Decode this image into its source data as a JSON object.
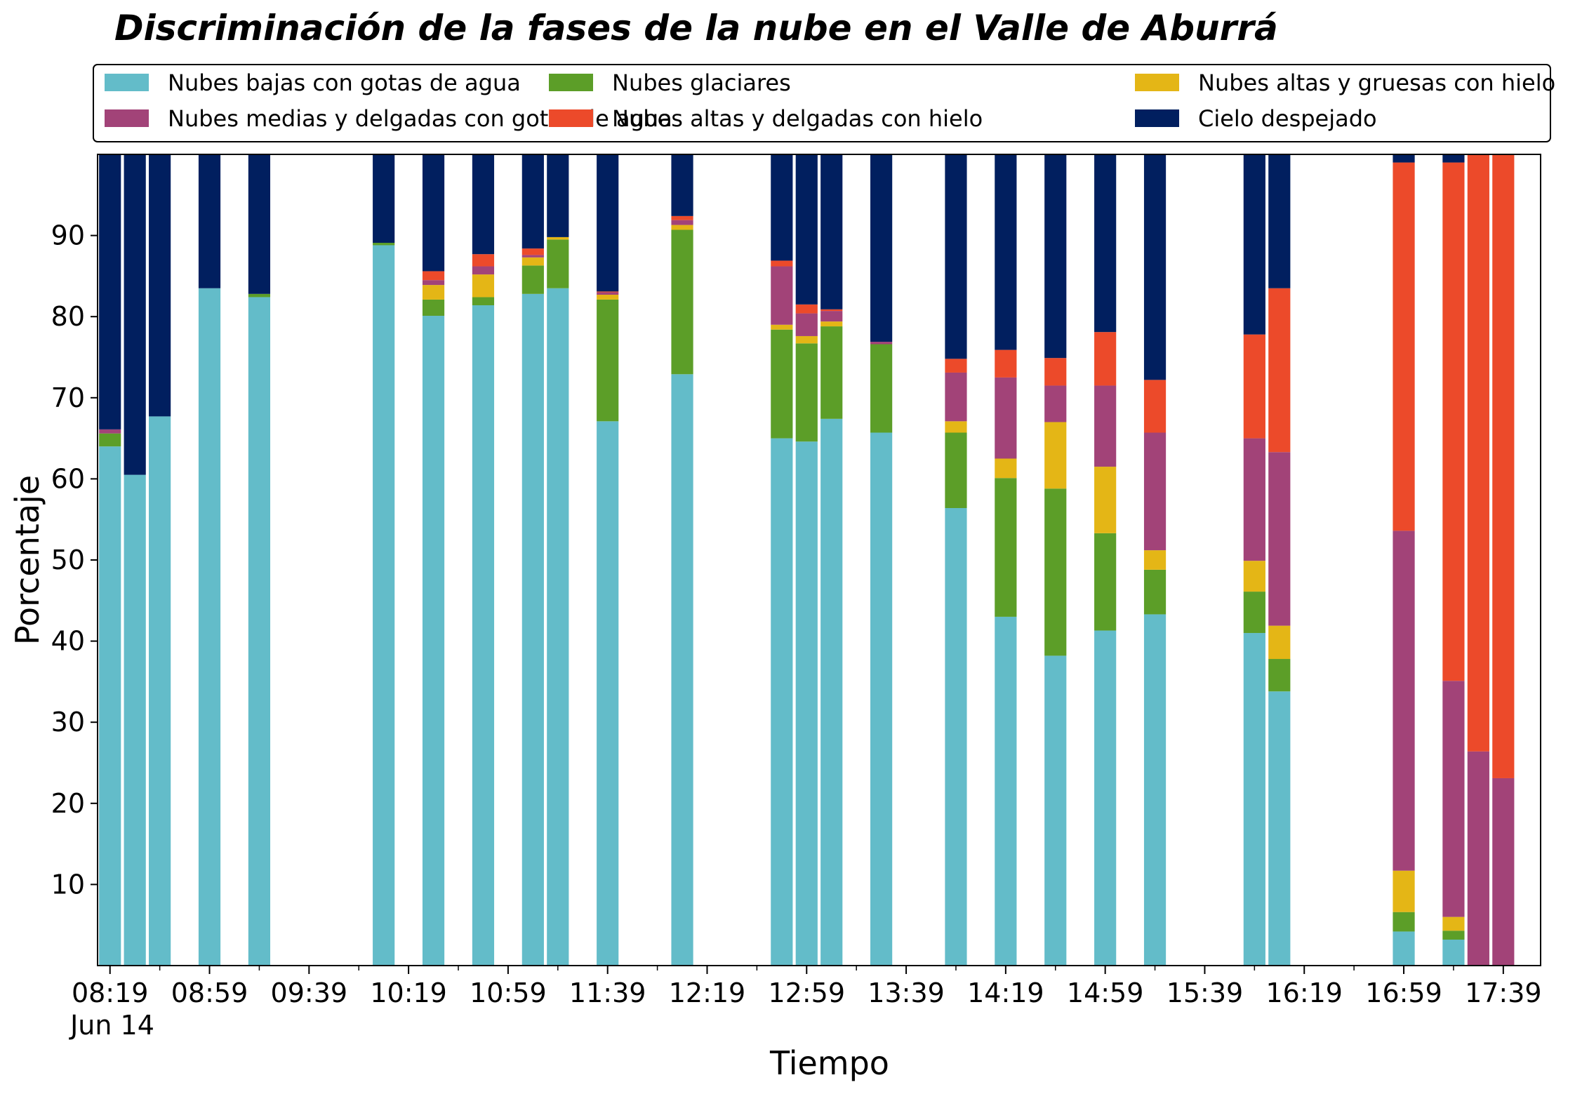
{
  "chart_data": {
    "type": "bar",
    "stacked": true,
    "title": "Discriminación de la fases de la nube en el Valle de Aburrá",
    "xlabel": "Tiempo",
    "ylabel": "Porcentaje",
    "ylim": [
      0,
      100
    ],
    "yticks": [
      10,
      20,
      30,
      40,
      50,
      60,
      70,
      80,
      90
    ],
    "xlim": [
      "08:14",
      "17:54"
    ],
    "xtick_labels": [
      "08:19",
      "08:59",
      "09:39",
      "10:19",
      "10:59",
      "11:39",
      "12:19",
      "12:59",
      "13:39",
      "14:19",
      "14:59",
      "15:39",
      "16:19",
      "16:59",
      "17:39"
    ],
    "x_date_label": "Jun 14",
    "grid": false,
    "legend": {
      "placement": "top",
      "columns": 3
    },
    "series": [
      {
        "name": "Nubes bajas con gotas de agua",
        "color": "#63BCC9"
      },
      {
        "name": "Nubes glaciares",
        "color": "#5C9E28"
      },
      {
        "name": "Nubes altas y gruesas con hielo",
        "color": "#E4B616"
      },
      {
        "name": "Nubes medias y delgadas con gotas de agua",
        "color": "#A24378"
      },
      {
        "name": "Nubes altas y delgadas con hielo",
        "color": "#EC4A2A"
      },
      {
        "name": "Cielo despejado",
        "color": "#011F5F"
      }
    ],
    "bars": [
      {
        "time": "08:19",
        "values": [
          64.0,
          1.6,
          0,
          0.5,
          0,
          33.9
        ]
      },
      {
        "time": "08:29",
        "values": [
          60.5,
          0,
          0,
          0,
          0,
          39.5
        ]
      },
      {
        "time": "08:39",
        "values": [
          67.7,
          0,
          0,
          0,
          0,
          32.3
        ]
      },
      {
        "time": "08:59",
        "values": [
          83.5,
          0,
          0,
          0,
          0,
          16.5
        ]
      },
      {
        "time": "09:19",
        "values": [
          82.4,
          0.4,
          0,
          0,
          0,
          17.2
        ]
      },
      {
        "time": "10:09",
        "values": [
          88.8,
          0.3,
          0,
          0,
          0,
          10.9
        ]
      },
      {
        "time": "10:29",
        "values": [
          80.1,
          2.0,
          1.8,
          0.6,
          1.1,
          14.4
        ]
      },
      {
        "time": "10:49",
        "values": [
          81.4,
          1.0,
          2.8,
          1.0,
          1.5,
          12.3
        ]
      },
      {
        "time": "11:09",
        "values": [
          82.8,
          3.5,
          1.0,
          0.3,
          0.8,
          11.6
        ]
      },
      {
        "time": "11:19",
        "values": [
          83.5,
          6.0,
          0.3,
          0,
          0,
          10.2
        ]
      },
      {
        "time": "11:39",
        "values": [
          67.1,
          15.0,
          0.6,
          0.3,
          0.1,
          16.9
        ]
      },
      {
        "time": "12:09",
        "values": [
          72.9,
          17.8,
          0.6,
          0.6,
          0.5,
          7.6
        ]
      },
      {
        "time": "12:49",
        "values": [
          65.0,
          13.4,
          0.6,
          7.2,
          0.7,
          13.1
        ]
      },
      {
        "time": "12:59",
        "values": [
          64.6,
          12.1,
          0.9,
          2.8,
          1.1,
          18.5
        ]
      },
      {
        "time": "13:09",
        "values": [
          67.4,
          11.4,
          0.6,
          1.3,
          0.2,
          19.1
        ]
      },
      {
        "time": "13:29",
        "values": [
          65.7,
          10.9,
          0,
          0.3,
          0,
          23.1
        ]
      },
      {
        "time": "13:59",
        "values": [
          56.4,
          9.3,
          1.4,
          6.0,
          1.7,
          25.2
        ]
      },
      {
        "time": "14:19",
        "values": [
          43.0,
          17.1,
          2.4,
          10.0,
          3.4,
          24.1
        ]
      },
      {
        "time": "14:39",
        "values": [
          38.2,
          20.6,
          8.2,
          4.5,
          3.4,
          25.1
        ]
      },
      {
        "time": "14:59",
        "values": [
          41.3,
          12.0,
          8.2,
          10.0,
          6.6,
          21.9
        ]
      },
      {
        "time": "15:19",
        "values": [
          43.3,
          5.5,
          2.4,
          14.5,
          6.5,
          27.8
        ]
      },
      {
        "time": "15:59",
        "values": [
          41.0,
          5.1,
          3.8,
          15.1,
          12.8,
          22.2
        ]
      },
      {
        "time": "16:09",
        "values": [
          33.8,
          4.0,
          4.1,
          21.4,
          20.2,
          16.5
        ]
      },
      {
        "time": "16:59",
        "values": [
          4.2,
          2.4,
          5.1,
          41.9,
          45.4,
          1.0
        ]
      },
      {
        "time": "17:19",
        "values": [
          3.2,
          1.1,
          1.7,
          29.1,
          63.9,
          1.0
        ]
      },
      {
        "time": "17:29",
        "values": [
          0,
          0,
          0,
          26.4,
          73.6,
          0
        ]
      },
      {
        "time": "17:39",
        "values": [
          0,
          0,
          0,
          23.1,
          76.9,
          0
        ]
      }
    ]
  }
}
